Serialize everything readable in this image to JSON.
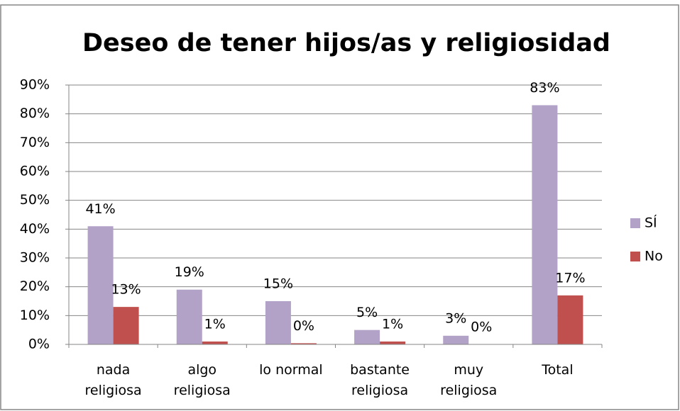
{
  "chart_data": {
    "type": "bar",
    "title": "Deseo de tener hijos/as y religiosidad",
    "categories": [
      "nada\nreligiosa",
      "algo\nreligiosa",
      "lo normal",
      "bastante\nreligiosa",
      "muy\nreligiosa",
      "Total"
    ],
    "series": [
      {
        "name": "SÍ",
        "color": "#b3a2c7",
        "values": [
          41,
          19,
          15,
          5,
          3,
          83
        ],
        "value_labels": [
          "41%",
          "19%",
          "15%",
          "5%",
          "3%",
          "83%"
        ]
      },
      {
        "name": "No",
        "color": "#c0504d",
        "values": [
          13,
          1,
          0.4,
          1,
          0,
          17
        ],
        "value_labels": [
          "13%",
          "1%",
          "0%",
          "1%",
          "0%",
          "17%"
        ]
      }
    ],
    "ylim": [
      0,
      90
    ],
    "yticks": [
      {
        "value": 0,
        "label": "0%"
      },
      {
        "value": 10,
        "label": "10%"
      },
      {
        "value": 20,
        "label": "20%"
      },
      {
        "value": 30,
        "label": "30%"
      },
      {
        "value": 40,
        "label": "40%"
      },
      {
        "value": 50,
        "label": "50%"
      },
      {
        "value": 60,
        "label": "60%"
      },
      {
        "value": 70,
        "label": "70%"
      },
      {
        "value": 80,
        "label": "80%"
      },
      {
        "value": 90,
        "label": "90%"
      }
    ],
    "grid": true,
    "legend": "right"
  }
}
